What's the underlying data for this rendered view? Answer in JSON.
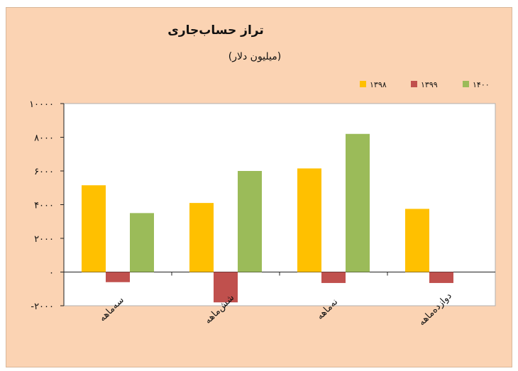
{
  "chart_data": {
    "type": "bar",
    "title": "تراز حساب‌جاری",
    "subtitle": "(میلیون دلار)",
    "categories": [
      "سه‌ماهه",
      "شش‌ماهه",
      "نه‌ماهه",
      "دوازده‌ماهه"
    ],
    "series": [
      {
        "name": "۱۳۹۸",
        "color": "#ffc000",
        "values": [
          5150,
          4100,
          6150,
          3750
        ]
      },
      {
        "name": "۱۳۹۹",
        "color": "#c0504d",
        "values": [
          -600,
          -1800,
          -650,
          -650
        ]
      },
      {
        "name": "۱۴۰۰",
        "color": "#9bbb59",
        "values": [
          3500,
          6000,
          8200,
          null
        ]
      }
    ],
    "ylim": [
      -2000,
      10000
    ],
    "yticks": [
      -2000,
      0,
      2000,
      4000,
      6000,
      8000,
      10000
    ],
    "ytick_labels": [
      "-۲۰۰۰",
      "۰",
      "۲۰۰۰",
      "۴۰۰۰",
      "۶۰۰۰",
      "۸۰۰۰",
      "۱۰۰۰۰"
    ],
    "legend_position": "top-right",
    "grid": false
  }
}
